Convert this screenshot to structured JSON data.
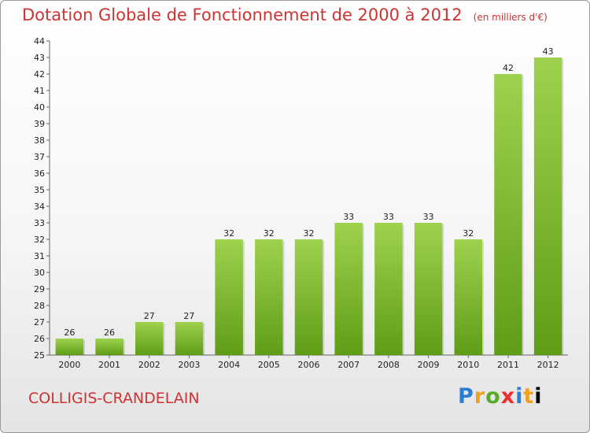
{
  "header": {
    "title": "Dotation Globale de Fonctionnement de 2000 à 2012",
    "unit": "(en milliers d'€)"
  },
  "footer": {
    "commune": "COLLIGIS-CRANDELAIN",
    "logo_letters": [
      "P",
      "r",
      "o",
      "x",
      "i",
      "t",
      "i"
    ]
  },
  "colors": {
    "bar_top": "#9fd24e",
    "bar_bottom": "#5f9d17",
    "title": "#cc3333"
  },
  "chart_data": {
    "type": "bar",
    "title": "Dotation Globale de Fonctionnement de 2000 à 2012",
    "ylabel": "(en milliers d'€)",
    "xlabel": "",
    "categories": [
      "2000",
      "2001",
      "2002",
      "2003",
      "2004",
      "2005",
      "2006",
      "2007",
      "2008",
      "2009",
      "2010",
      "2011",
      "2012"
    ],
    "values": [
      26,
      26,
      27,
      27,
      32,
      32,
      32,
      33,
      33,
      33,
      32,
      42,
      43
    ],
    "ylim": [
      25,
      44
    ],
    "yticks": [
      25,
      26,
      27,
      28,
      29,
      30,
      31,
      32,
      33,
      34,
      35,
      36,
      37,
      38,
      39,
      40,
      41,
      42,
      43,
      44
    ],
    "grid": false,
    "legend": "none"
  }
}
